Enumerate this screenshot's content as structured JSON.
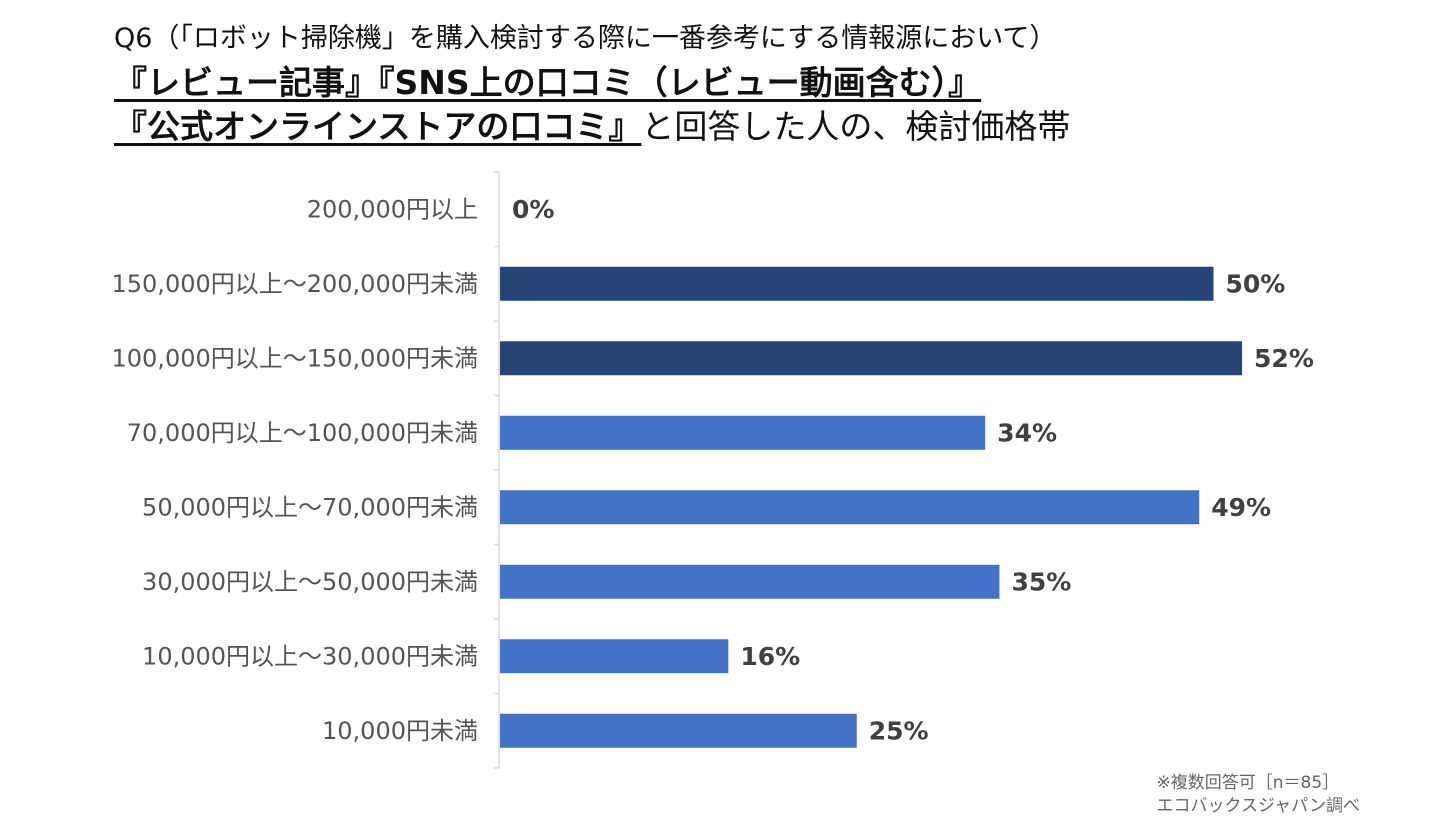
{
  "title": {
    "line1": "Q6（「ロボット掃除機」を購入検討する際に一番参考にする情報源において）",
    "line2": "『レビュー記事』『SNS上の口コミ（レビュー動画含む）』",
    "line3_underlined": "『公式オンラインストアの口コミ』",
    "line3_rest": "と回答した人の、検討価格帯"
  },
  "footnote": {
    "line1": "※複数回答可［n＝85］",
    "line2": "エコバックスジャパン調べ"
  },
  "colors": {
    "highlight": "#264478",
    "normal": "#4472C4",
    "axis": "#D9D9D9"
  },
  "chart_data": {
    "type": "bar",
    "orientation": "horizontal",
    "title": "『レビュー記事』『SNS上の口コミ（レビュー動画含む）』『公式オンラインストアの口コミ』と回答した人の、検討価格帯",
    "categories": [
      "200,000円以上",
      "150,000円以上～200,000円未満",
      "100,000円以上～150,000円未満",
      "70,000円以上～100,000円未満",
      "50,000円以上～70,000円未満",
      "30,000円以上～50,000円未満",
      "10,000円以上～30,000円未満",
      "10,000円未満"
    ],
    "values": [
      0,
      50,
      52,
      34,
      49,
      35,
      16,
      25
    ],
    "value_labels": [
      "0%",
      "50%",
      "52%",
      "34%",
      "49%",
      "35%",
      "16%",
      "25%"
    ],
    "highlighted": [
      false,
      true,
      true,
      false,
      false,
      false,
      false,
      false
    ],
    "unit": "%",
    "xlim": [
      0,
      60
    ],
    "grid": false,
    "legend": "none"
  }
}
